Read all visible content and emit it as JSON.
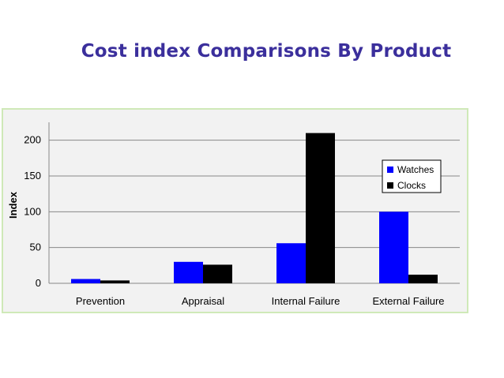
{
  "slide": {
    "title": "Cost index Comparisons By Product"
  },
  "chart_data": {
    "type": "bar",
    "categories": [
      "Prevention",
      "Appraisal",
      "Internal Failure",
      "External Failure"
    ],
    "series": [
      {
        "name": "Watches",
        "values": [
          6,
          30,
          56,
          100
        ],
        "color": "#0000ff"
      },
      {
        "name": "Clocks",
        "values": [
          4,
          26,
          210,
          12
        ],
        "color": "#000000"
      }
    ],
    "title": "",
    "xlabel": "",
    "ylabel": "Index",
    "ylim": [
      0,
      225
    ],
    "yticks": [
      0,
      50,
      100,
      150,
      200
    ],
    "grid": true,
    "legend_position": "right"
  }
}
